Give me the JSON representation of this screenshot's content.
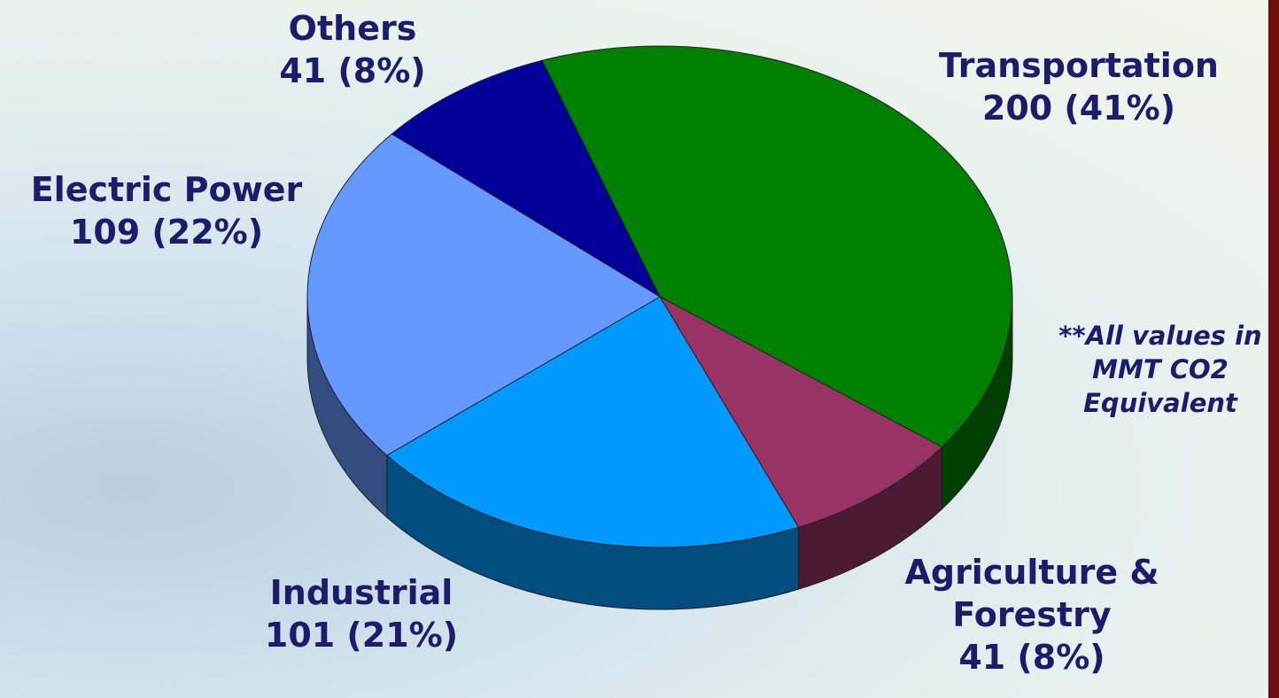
{
  "chart_data": {
    "type": "pie3d",
    "categories": [
      "Transportation",
      "Agriculture & Forestry",
      "Industrial",
      "Electric Power",
      "Others"
    ],
    "values": [
      200,
      41,
      101,
      109,
      41
    ],
    "value_labels": [
      "200 (41%)",
      "41 (8%)",
      "101 (21%)",
      "109 (22%)",
      "41 (8%)"
    ],
    "colors": [
      "#008000",
      "#993366",
      "#0099ff",
      "#6699ff",
      "#000099"
    ],
    "annotation": "**All values in MMT CO2 Equivalent"
  }
}
